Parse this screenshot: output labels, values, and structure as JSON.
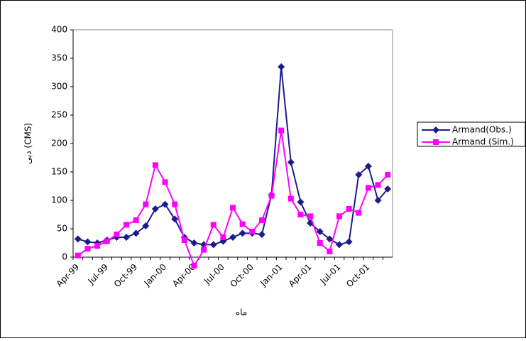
{
  "chart_data": {
    "type": "line",
    "categories": [
      "Apr-99",
      null,
      null,
      "Jul-99",
      null,
      null,
      "Oct-99",
      null,
      null,
      "Jan-00",
      null,
      null,
      "Apr-00",
      null,
      null,
      "Jul-00",
      null,
      null,
      "Oct-00",
      null,
      null,
      "Jan-01",
      null,
      null,
      "Apr-01",
      null,
      null,
      "Jul-01",
      null,
      null,
      "Oct-01",
      null,
      null
    ],
    "series": [
      {
        "name": "Armand(Obs.)",
        "color": "#1c1c8a",
        "marker": "diamond",
        "values": [
          32,
          27,
          25,
          30,
          35,
          35,
          42,
          55,
          85,
          93,
          67,
          35,
          25,
          22,
          22,
          28,
          35,
          42,
          42,
          40,
          110,
          335,
          167,
          97,
          60,
          45,
          32,
          22,
          27,
          145,
          160,
          100,
          120
        ]
      },
      {
        "name": "Armand (Sim.)",
        "color": "#ff00ff",
        "marker": "square",
        "values": [
          3,
          15,
          20,
          28,
          40,
          57,
          65,
          93,
          162,
          132,
          93,
          30,
          -15,
          13,
          57,
          35,
          87,
          58,
          45,
          65,
          108,
          223,
          103,
          75,
          72,
          25,
          10,
          72,
          85,
          78,
          122,
          127,
          145
        ]
      }
    ],
    "ylim": [
      0,
      400
    ],
    "yticks": [
      0,
      50,
      100,
      150,
      200,
      250,
      300,
      350,
      400
    ],
    "y_label": "دبی (CMS)",
    "x_label": "ماه",
    "grid": false,
    "legend": "right"
  }
}
